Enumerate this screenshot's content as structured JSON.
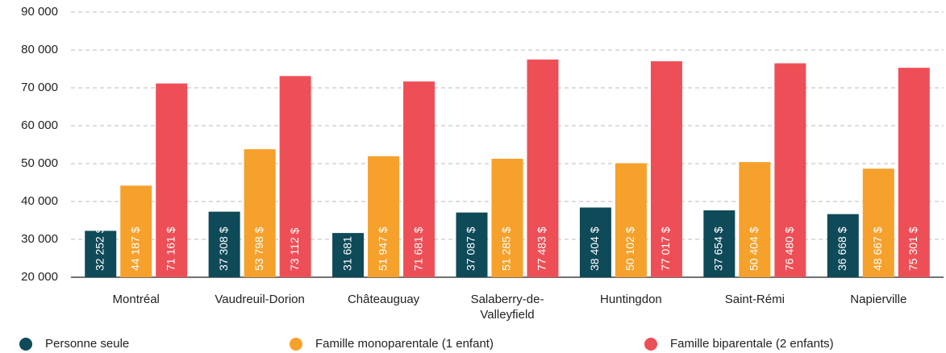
{
  "chart_data": {
    "type": "bar",
    "categories": [
      "Montréal",
      "Vaudreuil-Dorion",
      "Châteauguay",
      "Salaberry-de-Valleyfield",
      "Huntingdon",
      "Saint-Rémi",
      "Napierville"
    ],
    "series": [
      {
        "name": "Personne seule",
        "color": "#0f4a58",
        "values": [
          32252,
          37308,
          31681,
          37087,
          38404,
          37654,
          36668
        ],
        "value_labels": [
          "32 252 $",
          "37 308 $",
          "31 681 $",
          "37 087 $",
          "38 404 $",
          "37 654 $",
          "36 668 $"
        ]
      },
      {
        "name": "Famille monoparentale (1 enfant)",
        "color": "#f5a12c",
        "values": [
          44187,
          53798,
          51947,
          51285,
          50102,
          50404,
          48667
        ],
        "value_labels": [
          "44 187 $",
          "53 798 $",
          "51 947 $",
          "51 285 $",
          "50 102 $",
          "50 404 $",
          "48 667 $"
        ]
      },
      {
        "name": "Famille biparentale (2 enfants)",
        "color": "#ee4f57",
        "values": [
          71161,
          73112,
          71681,
          77483,
          77017,
          76480,
          75301
        ],
        "value_labels": [
          "71 161 $",
          "73 112 $",
          "71 681 $",
          "77 483 $",
          "77 017 $",
          "76 480 $",
          "75 301 $"
        ]
      }
    ],
    "ylim": [
      20000,
      90000
    ],
    "yticks": [
      {
        "value": 20000,
        "label": "20 000"
      },
      {
        "value": 30000,
        "label": "30 000"
      },
      {
        "value": 40000,
        "label": "40 000"
      },
      {
        "value": 50000,
        "label": "50 000"
      },
      {
        "value": 60000,
        "label": "60 000"
      },
      {
        "value": 70000,
        "label": "70 000"
      },
      {
        "value": 80000,
        "label": "80 000"
      },
      {
        "value": 90000,
        "label": "90 000"
      }
    ],
    "grid": true
  }
}
